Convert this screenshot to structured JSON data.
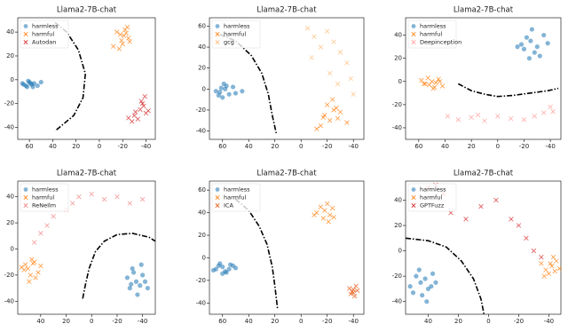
{
  "chart_data": [
    {
      "type": "scatter",
      "title": "Llama2-7B-chat",
      "xlim": [
        70,
        -48
      ],
      "ylim": [
        -50,
        52
      ],
      "xticks": [
        60,
        40,
        20,
        0,
        -20,
        -40
      ],
      "yticks": [
        40,
        20,
        0,
        -20,
        -40
      ],
      "legend": "upper left",
      "series": [
        {
          "name": "harmless",
          "color": "#1f77b4",
          "marker": "o",
          "x": [
            66,
            63,
            60,
            58,
            62,
            56,
            53,
            50,
            65,
            61,
            57,
            59
          ],
          "y": [
            -3,
            -5,
            -2,
            -4,
            -6,
            -3,
            -5,
            -2,
            -4,
            -1,
            -6,
            -3
          ]
        },
        {
          "name": "harmful",
          "color": "#ff7f0e",
          "marker": "x",
          "x": [
            -22,
            -18,
            -25,
            -20,
            -15,
            -24,
            -19,
            -12,
            -21,
            -26,
            -17,
            -23
          ],
          "y": [
            42,
            38,
            35,
            30,
            40,
            44,
            33,
            28,
            37,
            32,
            26,
            39
          ]
        },
        {
          "name": "Autodan",
          "color": "#d62728",
          "marker": "x",
          "x": [
            -30,
            -35,
            -38,
            -40,
            -33,
            -28,
            -36,
            -42,
            -25,
            -39,
            -31,
            -37
          ],
          "y": [
            -30,
            -25,
            -22,
            -28,
            -33,
            -35,
            -18,
            -26,
            -32,
            -14,
            -27,
            -20
          ]
        }
      ],
      "boundary": {
        "x": [
          38,
          28,
          18,
          12,
          14,
          22,
          38
        ],
        "y": [
          48,
          40,
          25,
          5,
          -15,
          -30,
          -43
        ]
      }
    },
    {
      "type": "scatter",
      "title": "Llama2-7B-chat",
      "xlim": [
        70,
        -48
      ],
      "ylim": [
        -48,
        68
      ],
      "xticks": [
        60,
        40,
        20,
        0,
        -20,
        -40
      ],
      "yticks": [
        60,
        40,
        20,
        0,
        -20,
        -40
      ],
      "legend": "upper left",
      "series": [
        {
          "name": "harmless",
          "color": "#1f77b4",
          "marker": "o",
          "x": [
            62,
            58,
            55,
            60,
            65,
            52,
            57,
            63,
            50,
            59,
            45,
            61
          ],
          "y": [
            -3,
            0,
            -5,
            -8,
            -2,
            2,
            3,
            -6,
            -4,
            5,
            -2,
            1
          ]
        },
        {
          "name": "harmful",
          "color": "#ff7f0e",
          "marker": "x",
          "x": [
            -18,
            -22,
            -25,
            -15,
            -28,
            -20,
            -30,
            -12,
            -24,
            -35,
            -17,
            -27
          ],
          "y": [
            -25,
            -30,
            -20,
            -35,
            -28,
            -15,
            -22,
            -38,
            -10,
            -32,
            -27,
            -18
          ]
        },
        {
          "name": "gcg",
          "color": "#ffbb78",
          "marker": "x",
          "x": [
            -5,
            -10,
            -20,
            -25,
            -30,
            -35,
            -15,
            -38,
            -28,
            -8,
            -40,
            -22
          ],
          "y": [
            58,
            50,
            55,
            45,
            35,
            25,
            40,
            10,
            5,
            30,
            -5,
            15
          ]
        }
      ],
      "boundary": {
        "x": [
          62,
          50,
          38,
          30,
          25,
          22,
          19
        ],
        "y": [
          52,
          46,
          32,
          15,
          -5,
          -25,
          -42
        ]
      }
    },
    {
      "type": "scatter",
      "title": "Llama2-7B-chat",
      "xlim": [
        70,
        -48
      ],
      "ylim": [
        -50,
        55
      ],
      "xticks": [
        60,
        40,
        20,
        0,
        -20,
        -40
      ],
      "yticks": [
        40,
        20,
        0,
        -20,
        -40
      ],
      "legend": "upper left",
      "series": [
        {
          "name": "harmless",
          "color": "#1f77b4",
          "marker": "o",
          "x": [
            -25,
            -30,
            -20,
            -35,
            -28,
            -22,
            -18,
            -32,
            -26,
            -38,
            -24,
            -15
          ],
          "y": [
            35,
            30,
            28,
            40,
            25,
            38,
            32,
            22,
            45,
            33,
            20,
            30
          ]
        },
        {
          "name": "harmful",
          "color": "#ff7f0e",
          "marker": "x",
          "x": [
            55,
            50,
            48,
            45,
            52,
            58,
            42,
            47,
            53,
            49,
            56,
            44
          ],
          "y": [
            -2,
            0,
            -5,
            2,
            -3,
            1,
            -4,
            -1,
            3,
            -6,
            -2,
            0
          ]
        },
        {
          "name": "Deepinception",
          "color": "#ff9896",
          "marker": "x",
          "x": [
            38,
            30,
            20,
            10,
            0,
            -10,
            -20,
            -28,
            -35,
            -40,
            -42,
            15
          ],
          "y": [
            -30,
            -33,
            -31,
            -34,
            -30,
            -32,
            -33,
            -30,
            -27,
            -22,
            -26,
            -29
          ]
        }
      ],
      "boundary": {
        "x": [
          30,
          20,
          10,
          0,
          -12,
          -25,
          -38,
          -46
        ],
        "y": [
          -2,
          -8,
          -11,
          -13,
          -12,
          -10,
          -8,
          -6
        ]
      }
    },
    {
      "type": "scatter",
      "title": "Llama2-7B-chat",
      "xlim": [
        58,
        -50
      ],
      "ylim": [
        -50,
        52
      ],
      "xticks": [
        40,
        20,
        0,
        -20,
        -40
      ],
      "yticks": [
        40,
        20,
        0,
        -20,
        -40
      ],
      "legend": "upper left",
      "series": [
        {
          "name": "harmless",
          "color": "#1f77b4",
          "marker": "o",
          "x": [
            -35,
            -40,
            -30,
            -38,
            -32,
            -42,
            -28,
            -36,
            -44,
            -33,
            -39,
            -31
          ],
          "y": [
            -25,
            -20,
            -30,
            -28,
            -15,
            -25,
            -22,
            -35,
            -30,
            -18,
            -12,
            -27
          ]
        },
        {
          "name": "harmful",
          "color": "#ff7f0e",
          "marker": "x",
          "x": [
            50,
            45,
            48,
            52,
            42,
            55,
            47,
            44,
            53,
            40,
            49,
            46
          ],
          "y": [
            -15,
            -10,
            -20,
            -12,
            -18,
            -14,
            -8,
            -22,
            -16,
            -13,
            -25,
            -11
          ]
        },
        {
          "name": "ReNeIlm",
          "color": "#f08080",
          "marker": "x",
          "x": [
            45,
            40,
            35,
            30,
            20,
            15,
            10,
            0,
            -10,
            -20,
            -30,
            -40
          ],
          "y": [
            5,
            12,
            18,
            25,
            30,
            35,
            40,
            42,
            38,
            40,
            35,
            38
          ]
        }
      ],
      "boundary": {
        "x": [
          7,
          5,
          2,
          -3,
          -10,
          -20,
          -32,
          -45,
          -50
        ],
        "y": [
          -38,
          -28,
          -15,
          -2,
          6,
          11,
          12,
          9,
          6
        ]
      }
    },
    {
      "type": "scatter",
      "title": "Llama2-7B-chat",
      "xlim": [
        70,
        -48
      ],
      "ylim": [
        -50,
        68
      ],
      "xticks": [
        60,
        40,
        20,
        0,
        -20,
        -40
      ],
      "yticks": [
        60,
        40,
        20,
        0,
        -20,
        -40
      ],
      "legend": "upper left",
      "series": [
        {
          "name": "harmless",
          "color": "#1f77b4",
          "marker": "o",
          "x": [
            65,
            60,
            58,
            62,
            55,
            67,
            52,
            60,
            50,
            57,
            63,
            54
          ],
          "y": [
            -10,
            -8,
            -12,
            -5,
            -10,
            -11,
            -7,
            -14,
            -9,
            -13,
            -7,
            -6
          ]
        },
        {
          "name": "harmful",
          "color": "#ff7f0e",
          "marker": "x",
          "x": [
            -18,
            -22,
            -15,
            -25,
            -20,
            -12,
            -17,
            -24,
            -10,
            -21
          ],
          "y": [
            42,
            38,
            45,
            36,
            48,
            40,
            35,
            44,
            38,
            32
          ]
        },
        {
          "name": "ICA",
          "color": "#e6550d",
          "marker": "x",
          "x": [
            -40,
            -38,
            -42,
            -39,
            -41,
            -37,
            -40,
            -43
          ],
          "y": [
            -28,
            -32,
            -25,
            -30,
            -34,
            -27,
            -31,
            -29
          ]
        }
      ],
      "boundary": {
        "x": [
          50,
          40,
          32,
          26,
          22,
          20,
          18
        ],
        "y": [
          52,
          42,
          28,
          12,
          -8,
          -25,
          -45
        ]
      }
    },
    {
      "type": "scatter",
      "title": "Llama2-7B-chat",
      "xlim": [
        55,
        -48
      ],
      "ylim": [
        -50,
        55
      ],
      "xticks": [
        40,
        20,
        0,
        -20,
        -40
      ],
      "yticks": [
        40,
        20,
        0,
        -20,
        -40
      ],
      "legend": "upper left",
      "series": [
        {
          "name": "harmless",
          "color": "#1f77b4",
          "marker": "o",
          "x": [
            45,
            40,
            48,
            42,
            38,
            50,
            44,
            35,
            46,
            41,
            37,
            52
          ],
          "y": [
            -25,
            -30,
            -20,
            -22,
            -28,
            -33,
            -35,
            -25,
            -15,
            -40,
            -18,
            -28
          ]
        },
        {
          "name": "harmful",
          "color": "#ff7f0e",
          "marker": "x",
          "x": [
            -42,
            -38,
            -45,
            -40,
            -35,
            -47,
            -43,
            -37,
            -44,
            -41
          ],
          "y": [
            -12,
            -15,
            -8,
            -18,
            -10,
            -14,
            -5,
            -20,
            -16,
            -10
          ]
        },
        {
          "name": "GPTFuzz",
          "color": "#d62728",
          "marker": "x",
          "x": [
            40,
            35,
            30,
            25,
            15,
            5,
            -5,
            -15,
            -20,
            -25,
            -30,
            -35
          ],
          "y": [
            50,
            52,
            45,
            30,
            25,
            35,
            40,
            25,
            20,
            10,
            0,
            -5
          ]
        }
      ],
      "boundary": {
        "x": [
          55,
          40,
          28,
          18,
          10,
          5,
          3
        ],
        "y": [
          10,
          8,
          3,
          -8,
          -22,
          -38,
          -50
        ]
      }
    }
  ]
}
